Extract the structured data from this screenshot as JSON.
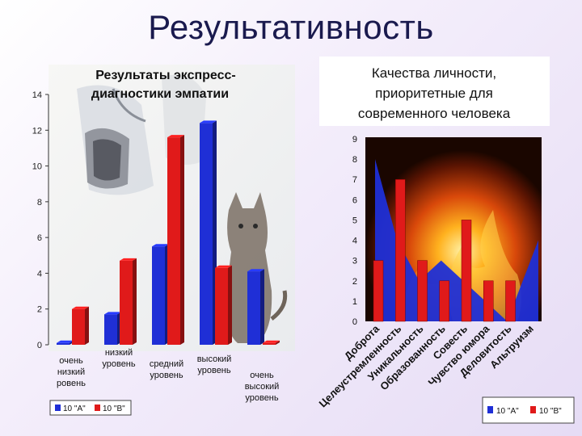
{
  "slide": {
    "title": "Результативность"
  },
  "chart_data": [
    {
      "type": "bar",
      "title": "Результаты экспресс-диагностики эмпатии",
      "categories": [
        "очень низкий ровень",
        "низкий уровень",
        "средний уровень",
        "высокий уровень",
        "очень высокий уровень"
      ],
      "series": [
        {
          "name": "10 \"А\"",
          "color": "#1f2fd6",
          "values": [
            0.1,
            1.7,
            5.5,
            12.4,
            4.1
          ]
        },
        {
          "name": "10 \"В\"",
          "color": "#e01a1a",
          "values": [
            2.0,
            4.7,
            11.6,
            4.3,
            0.1
          ]
        }
      ],
      "ylim": [
        0,
        14
      ],
      "yticks": [
        "0",
        "2",
        "4",
        "6",
        "8",
        "10",
        "12",
        "14"
      ],
      "legend_position": "bottom",
      "grid": false
    },
    {
      "type": "bar",
      "title": "Качества личности, приоритетные для современного человека",
      "categories": [
        "Доброта",
        "Целеустремленность",
        "Уникальность",
        "Образованность",
        "Совесть",
        "Чувство юмора",
        "Деловитость",
        "Альтруизм"
      ],
      "series": [
        {
          "name": "10 \"А\"",
          "color": "#1f2fd6",
          "style": "area",
          "values": [
            8,
            4,
            2,
            3,
            2,
            1,
            0,
            4
          ]
        },
        {
          "name": "10 \"В\"",
          "color": "#e01a1a",
          "style": "bar",
          "values": [
            3,
            7,
            3,
            2,
            5,
            2,
            2,
            0
          ]
        }
      ],
      "ylim": [
        0,
        9
      ],
      "yticks": [
        "0",
        "1",
        "2",
        "3",
        "4",
        "5",
        "6",
        "7",
        "8",
        "9"
      ],
      "legend_position": "bottom-right",
      "grid": false
    }
  ]
}
